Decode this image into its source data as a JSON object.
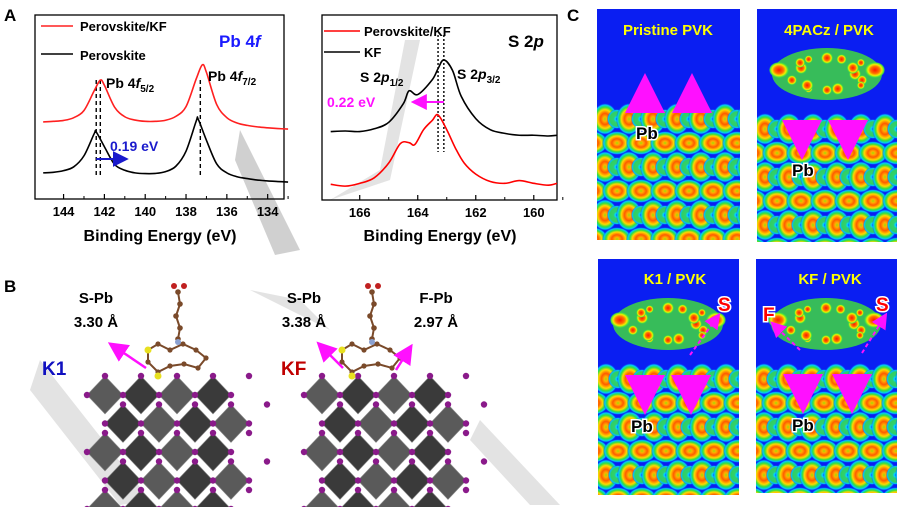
{
  "panel_labels": {
    "a": "A",
    "b": "B",
    "c": "C"
  },
  "chart_data": [
    {
      "type": "line",
      "panel": "A",
      "title": "Pb 4f",
      "title_parts": {
        "main": "Pb 4",
        "italic": "f"
      },
      "xlabel": "Binding Energy (eV)",
      "ylabel": "",
      "xlim": [
        145.4,
        133.2
      ],
      "x_reversed": true,
      "ylim": [
        0,
        100
      ],
      "xticks": [
        144,
        142,
        140,
        138,
        136,
        134
      ],
      "grid": false,
      "legend_position": "top-left",
      "series": [
        {
          "name": "Perovskite/KF",
          "color": "#ff2020",
          "x": [
            145,
            144.5,
            144,
            143.5,
            143,
            142.5,
            142.2,
            142,
            141.5,
            141,
            140.5,
            140,
            139.5,
            139,
            138.5,
            138,
            137.5,
            137.2,
            137,
            136.5,
            136,
            135.5,
            135,
            134.5,
            134,
            133.5,
            133
          ],
          "y": [
            41.9,
            42.2,
            42.7,
            44.2,
            48.1,
            58.8,
            64.6,
            61.8,
            49.9,
            44.7,
            42.9,
            42.2,
            42.2,
            42.8,
            44.9,
            50.2,
            65.3,
            72.9,
            68.8,
            51.4,
            44.2,
            41.3,
            40.0,
            39.2,
            38.7,
            38.3,
            38.0
          ]
        },
        {
          "name": "Perovskite",
          "color": "#000000",
          "x": [
            145,
            144.5,
            144,
            143.5,
            143,
            142.5,
            142.4,
            142,
            141.5,
            141,
            140.5,
            140,
            139.5,
            139,
            138.5,
            138,
            137.5,
            137.4,
            137,
            136.5,
            136,
            135.5,
            135,
            134.5,
            134,
            133.5,
            133
          ],
          "y": [
            14.2,
            14.5,
            15.4,
            17.5,
            23.5,
            35.5,
            36.4,
            28.4,
            18.8,
            15.6,
            14.2,
            13.8,
            13.9,
            14.9,
            17.8,
            26.0,
            42.4,
            43.3,
            31.9,
            19.1,
            14.2,
            12.1,
            11.1,
            10.3,
            9.8,
            9.5,
            9.2
          ]
        }
      ],
      "annotations": [
        {
          "text_parts": {
            "main": "Pb 4",
            "italic": "f",
            "sub": "5/2"
          }
        },
        {
          "text_parts": {
            "main": "Pb 4",
            "italic": "f",
            "sub": "7/2"
          }
        },
        {
          "text": "0.19 eV",
          "color": "#1a1aff",
          "arrow_from": 142.4,
          "arrow_to": 141.0
        }
      ],
      "reference_lines": [
        142.4,
        142.2,
        137.3
      ]
    },
    {
      "type": "line",
      "panel": "A",
      "title": "S 2p",
      "title_parts": {
        "main": "S 2",
        "italic": "p"
      },
      "xlabel": "Binding Energy (eV)",
      "ylabel": "",
      "xlim": [
        167.3,
        159.2
      ],
      "x_reversed": true,
      "ylim": [
        0,
        100
      ],
      "xticks": [
        166,
        164,
        162,
        160
      ],
      "grid": false,
      "legend_position": "top-left",
      "series": [
        {
          "name": "Perovskite/KF",
          "color": "#ff0000",
          "x": [
            167,
            166.5,
            166,
            165.5,
            165,
            164.6,
            164.3,
            164.1,
            163.8,
            163.5,
            163.3,
            163,
            162.7,
            162.4,
            162,
            161.5,
            161,
            160.5,
            160,
            159.5,
            159.2
          ],
          "y": [
            8.5,
            7.5,
            9,
            12,
            20,
            30.5,
            31,
            30,
            38,
            43,
            46,
            38,
            28,
            20,
            14,
            10,
            9,
            10.5,
            9,
            8,
            9
          ]
        },
        {
          "name": "KF",
          "color": "#000000",
          "x": [
            167,
            166.5,
            166,
            165.5,
            165,
            164.5,
            164.3,
            164,
            163.5,
            163.3,
            163.1,
            162.8,
            162.5,
            162,
            161.5,
            161,
            160.5,
            160,
            159.5,
            159.2
          ],
          "y": [
            37,
            37.3,
            37,
            38.5,
            42,
            52,
            59,
            57,
            65,
            71,
            75.7,
            70,
            56,
            44,
            38,
            36,
            35,
            35,
            34.6,
            35
          ]
        }
      ],
      "annotations": [
        {
          "text_parts": {
            "main": "S 2",
            "italic": "p",
            "sub": "1/2"
          }
        },
        {
          "text_parts": {
            "main": "S 2",
            "italic": "p",
            "sub": "3/2"
          }
        },
        {
          "text": "0.22 eV",
          "color": "#ff10ff",
          "arrow_from": 163.1,
          "arrow_to": 164.1
        }
      ],
      "reference_lines": [
        163.3,
        163.1
      ]
    }
  ],
  "panel_b": {
    "left": {
      "model": "K1",
      "model_color": "#1010c0",
      "bond": "S-Pb",
      "distance": "3.30 Å"
    },
    "right": {
      "model": "KF",
      "model_color": "#c00000",
      "bond1": "S-Pb",
      "distance1": "3.38 Å",
      "bond2": "F-Pb",
      "distance2": "2.97 Å"
    }
  },
  "panel_c": {
    "label_color": "#ffff00",
    "maps": [
      {
        "title": "Pristine PVK",
        "atom_label": "Pb"
      },
      {
        "title": "4PACz / PVK",
        "atom_label": "Pb"
      },
      {
        "title": "K1 / PVK",
        "atom_label": "Pb",
        "marker_s": "S"
      },
      {
        "title": "KF / PVK",
        "atom_label": "Pb",
        "marker_s": "S",
        "marker_f": "F"
      }
    ]
  }
}
